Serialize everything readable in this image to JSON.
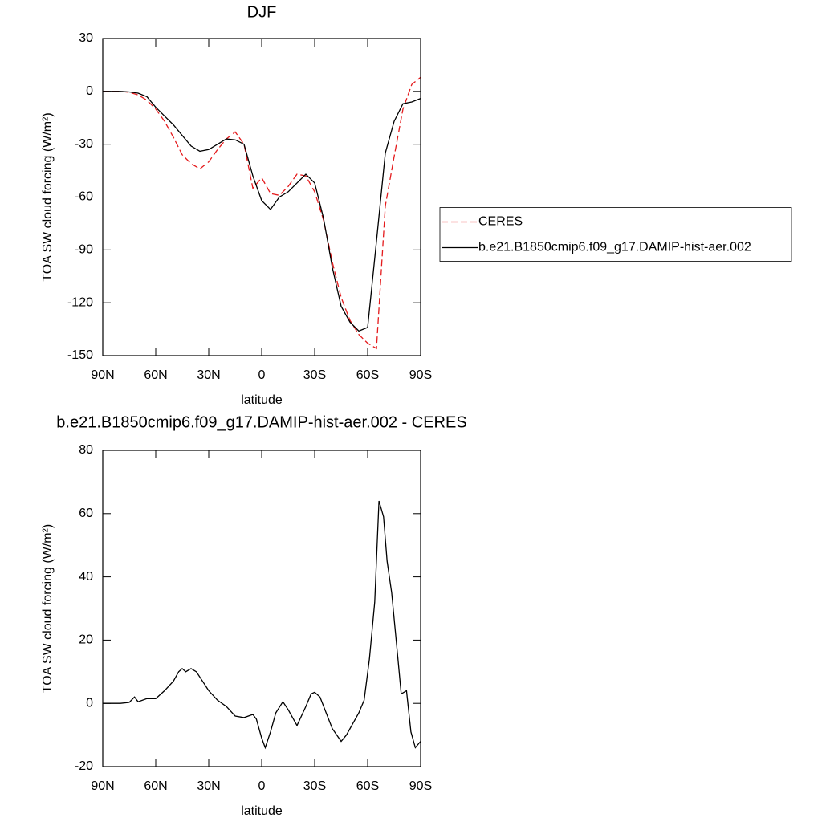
{
  "chart_data": [
    {
      "type": "line",
      "title": "DJF",
      "xlabel": "latitude",
      "ylabel": "TOA SW cloud forcing (W/m²)",
      "x": [
        90,
        85,
        80,
        75,
        70,
        65,
        60,
        55,
        50,
        45,
        40,
        35,
        30,
        25,
        20,
        15,
        10,
        5,
        0,
        -5,
        -10,
        -15,
        -20,
        -25,
        -30,
        -35,
        -40,
        -45,
        -50,
        -55,
        -60,
        -65,
        -70,
        -75,
        -80,
        -85,
        -90
      ],
      "xlim": [
        90,
        -90
      ],
      "xticks": [
        {
          "value": 90,
          "label": "90N"
        },
        {
          "value": 60,
          "label": "60N"
        },
        {
          "value": 30,
          "label": "30N"
        },
        0,
        {
          "value": -30,
          "label": "30S"
        },
        {
          "value": -60,
          "label": "60S"
        },
        {
          "value": -90,
          "label": "90S"
        }
      ],
      "ylim": [
        -150,
        30
      ],
      "yticks": [
        -150,
        -120,
        -90,
        -60,
        -30,
        0,
        30
      ],
      "legend": "outside-right",
      "series": [
        {
          "name": "CERES",
          "color": "#e41a1c",
          "style": "dashed",
          "values": [
            0,
            0,
            0,
            -0.5,
            -2,
            -5,
            -10,
            -17,
            -26,
            -36,
            -41,
            -44,
            -40,
            -33,
            -27,
            -23,
            -30,
            -55,
            -49,
            -58,
            -59,
            -54,
            -47,
            -48,
            -57,
            -73,
            -97,
            -117,
            -130,
            -138,
            -143,
            -146,
            -65,
            -37,
            -10,
            4,
            8
          ]
        },
        {
          "name": "b.e21.B1850cmip6.f09_g17.DAMIP-hist-aer.002",
          "color": "#000000",
          "style": "solid",
          "values": [
            0,
            0,
            0,
            -0.3,
            -1,
            -3,
            -9,
            -14,
            -19,
            -25,
            -31,
            -34,
            -33,
            -30,
            -27,
            -27.5,
            -30,
            -48,
            -62,
            -67,
            -60,
            -57,
            -52,
            -47,
            -52,
            -72,
            -100,
            -122,
            -131,
            -136,
            -134,
            -85,
            -35,
            -17,
            -7,
            -6,
            -4
          ]
        }
      ]
    },
    {
      "type": "line",
      "title": "b.e21.B1850cmip6.f09_g17.DAMIP-hist-aer.002 - CERES",
      "xlabel": "latitude",
      "ylabel": "TOA SW cloud forcing (W/m²)",
      "x": [
        90,
        80,
        75,
        72,
        70,
        65,
        60,
        55,
        50,
        47,
        45,
        43,
        40,
        37,
        30,
        25,
        20,
        15,
        10,
        5,
        3,
        0,
        -2,
        -5,
        -8,
        -12,
        -15,
        -20,
        -25,
        -28,
        -30,
        -33,
        -40,
        -45,
        -48,
        -55,
        -58,
        -61,
        -64,
        -66.4,
        -69,
        -71,
        -73.6,
        -77,
        -79,
        -82,
        -84.5,
        -87,
        -90
      ],
      "xlim": [
        90,
        -90
      ],
      "xticks": [
        {
          "value": 90,
          "label": "90N"
        },
        {
          "value": 60,
          "label": "60N"
        },
        {
          "value": 30,
          "label": "30N"
        },
        0,
        {
          "value": -30,
          "label": "30S"
        },
        {
          "value": -60,
          "label": "60S"
        },
        {
          "value": -90,
          "label": "90S"
        }
      ],
      "ylim": [
        -20,
        80
      ],
      "yticks": [
        -20,
        0,
        20,
        40,
        60,
        80
      ],
      "series": [
        {
          "color": "#000000",
          "style": "solid",
          "values": [
            0,
            0,
            0.3,
            2,
            0.5,
            1.5,
            1.5,
            4,
            7,
            10,
            11,
            10,
            11,
            10,
            4,
            1,
            -1,
            -4,
            -4.5,
            -3.5,
            -5,
            -11,
            -14,
            -9,
            -3,
            0.5,
            -2,
            -7,
            -1,
            3,
            3.5,
            2,
            -8,
            -12,
            -10,
            -3,
            1,
            14,
            32,
            64,
            59,
            45,
            35,
            15,
            3,
            4,
            -9,
            -14,
            -12
          ]
        }
      ]
    }
  ]
}
